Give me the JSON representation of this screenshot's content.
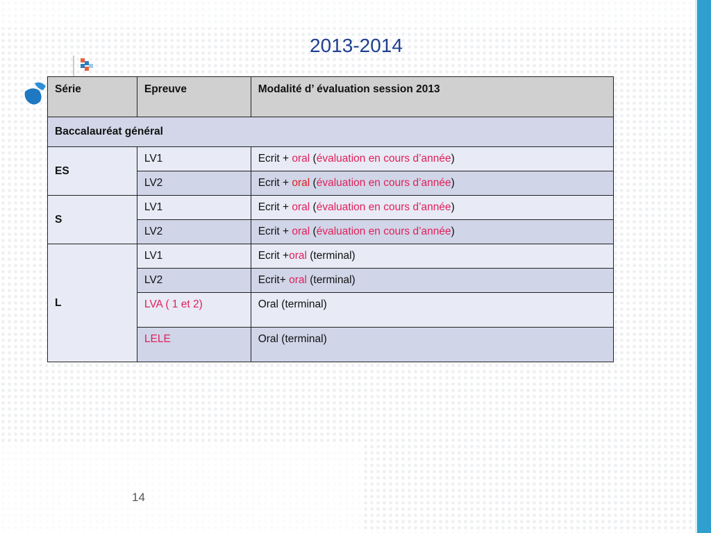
{
  "title": "2013-2014",
  "page_number": "14",
  "colors": {
    "accent_bar": "#2f9fd0",
    "title": "#1f3f8f",
    "highlight": "#e0205a"
  },
  "table": {
    "headers": [
      "Série",
      "Epreuve",
      "Modalité d’ évaluation session 2013"
    ],
    "section": "Baccalauréat général",
    "groups": [
      {
        "serie": "ES",
        "rows": [
          {
            "epreuve": "LV1",
            "m1": "Ecrit + ",
            "oral": "oral",
            "m2": " (",
            "paren": "évaluation en cours d’année",
            "m3": ")"
          },
          {
            "epreuve": "LV2",
            "m1": "Ecrit + ",
            "oral": "oral",
            "m2": " (",
            "paren": "évaluation en cours d’année",
            "m3": ")"
          }
        ]
      },
      {
        "serie": "S",
        "rows": [
          {
            "epreuve": "LV1",
            "m1": "Ecrit + ",
            "oral": "oral",
            "m2": " (",
            "paren": "évaluation en cours d’année",
            "m3": ")"
          },
          {
            "epreuve": "LV2",
            "m1": "Ecrit + ",
            "oral": "oral",
            "m2": " (",
            "paren": "évaluation en cours d’année",
            "m3": ")"
          }
        ]
      },
      {
        "serie": "L",
        "rows": [
          {
            "epreuve": "LV1",
            "m1": "Ecrit +",
            "oral": "oral",
            "m2": " (terminal)"
          },
          {
            "epreuve": "LV2",
            "m1": "Ecrit+ ",
            "oral": "oral",
            "m2": " (terminal)"
          },
          {
            "epreuve": "LVA ( 1 et 2)",
            "m1": "Oral (terminal)"
          },
          {
            "epreuve": "LELE",
            "m1": "Oral (terminal)"
          }
        ]
      }
    ]
  }
}
